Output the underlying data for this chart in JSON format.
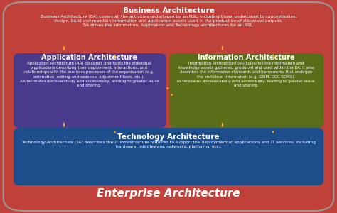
{
  "title": "Enterprise Architecture",
  "title_color": "#ffffff",
  "title_fontsize": 11,
  "outer_bg": "#c0413a",
  "inner_border_color": "#888888",
  "ba_title": "Business Architecture",
  "ba_title_fontsize": 7.5,
  "ba_body": "Business Architecture (BA) covers all the activities undertaken by an NSL, including those undertaken to conceptualize,\ndesign, build and maintain information and application assets used in the production of statistical outputs.\nBA drives the Information, Application and Technology architectures for an NSL.",
  "ba_body_fontsize": 4.3,
  "aa_title": "Application Architecture",
  "aa_title_fontsize": 7,
  "aa_body": "Application Architecture (AA) classifies and hosts the individual\napplications describing their deployment, interactions, and\nrelationships with the business processes of the organisation (e.g.\nestimation, editing and seasonal adjustment tools, etc.).\nAA facilitates discoverability and accessibility, leading to greater reuse\nand sharing.",
  "aa_body_fontsize": 4.0,
  "aa_color": "#4a3a8c",
  "ia_title": "Information Architecture",
  "ia_title_fontsize": 7,
  "ia_body": "Information Architecture (IA) classifies the information and\nknowledge assets gathered, produced and used within the BA. It also\ndescribes the information standards and frameworks that underpin\nthe statistical information (e.g. GSIM, DDI, SDMX).\nIA facilitates discoverability and accessibility, leading to greater reuse\nand sharing.",
  "ia_body_fontsize": 4.0,
  "ia_color": "#5a6e1a",
  "ta_title": "Technology Architecture",
  "ta_title_fontsize": 7.5,
  "ta_body": "Technology Architecture (TA) describes the IT infrastructure required to support the deployment of applications and IT services, including\nhardware, middleware, networks, platforms, etc..",
  "ta_body_fontsize": 4.3,
  "ta_color": "#1e4d8c",
  "arrow_color": "#f5a623",
  "text_color": "#ffffff",
  "bottom_bg": "#c0413a",
  "fig_bg": "#c0413a"
}
